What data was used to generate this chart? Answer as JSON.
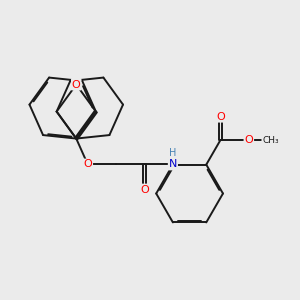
{
  "background_color": "#ebebeb",
  "bond_color": "#1a1a1a",
  "atom_colors": {
    "O": "#ff0000",
    "N": "#0000cc",
    "H": "#4682b4",
    "C": "#1a1a1a"
  },
  "lw": 1.4,
  "dbo": 0.055,
  "figsize": [
    3.0,
    3.0
  ],
  "dpi": 100
}
